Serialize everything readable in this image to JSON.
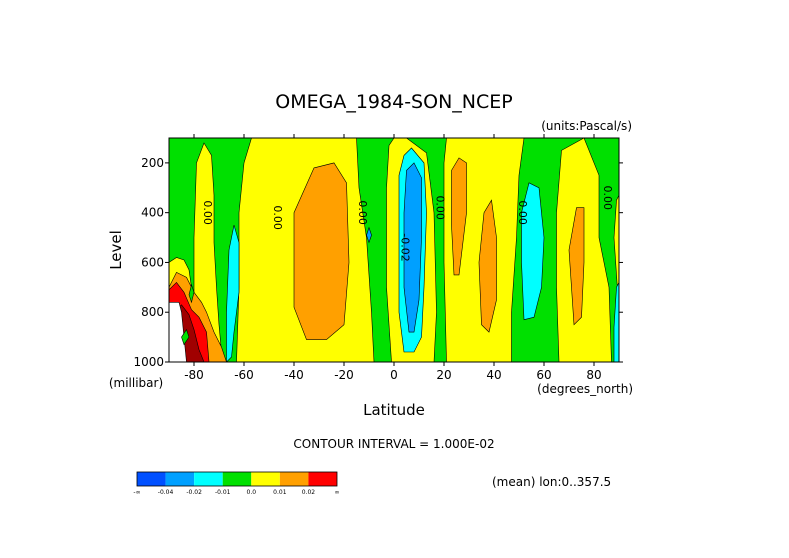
{
  "chart_data": {
    "type": "contour",
    "title": "OMEGA_1984-SON_NCEP",
    "units_label": "(units:Pascal/s)",
    "xlabel": "Latitude",
    "x_units_label": "(degrees_north)",
    "ylabel": "Level",
    "y_units_label": "(millibar)",
    "xlim": [
      -90,
      90
    ],
    "ylim": [
      1000,
      100
    ],
    "x_ticks": [
      {
        "value": -80,
        "label": "-80"
      },
      {
        "value": -60,
        "label": "-60"
      },
      {
        "value": -40,
        "label": "-40"
      },
      {
        "value": -20,
        "label": "-20"
      },
      {
        "value": 0,
        "label": "0"
      },
      {
        "value": 20,
        "label": "20"
      },
      {
        "value": 40,
        "label": "40"
      },
      {
        "value": 60,
        "label": "60"
      },
      {
        "value": 80,
        "label": "80"
      }
    ],
    "y_ticks": [
      {
        "value": 200,
        "label": "200"
      },
      {
        "value": 400,
        "label": "400"
      },
      {
        "value": 600,
        "label": "600"
      },
      {
        "value": 800,
        "label": "800"
      },
      {
        "value": 1000,
        "label": "1000"
      }
    ],
    "contour_interval_text": "CONTOUR INTERVAL = 1.000E-02",
    "mean_note": "(mean) lon:0..357.5",
    "colorbar": {
      "colors": [
        "#0050ff",
        "#00a0ff",
        "#00ffff",
        "#00e000",
        "#ffff00",
        "#ffa000",
        "#ff0000"
      ],
      "labels": [
        "-∞",
        "-0.04",
        "-0.02",
        "-0.01",
        "0.0",
        "0.01",
        "0.02",
        "∞"
      ]
    },
    "background_color": "#00e000",
    "regions": [
      {
        "level": "yellow",
        "color": "#ffff00",
        "pts": [
          [
            -90,
            1000
          ],
          [
            -90,
            600
          ],
          [
            -87,
            580
          ],
          [
            -84,
            590
          ],
          [
            -82,
            630
          ],
          [
            -81,
            700
          ],
          [
            -80,
            760
          ],
          [
            -80,
            500
          ],
          [
            -79,
            200
          ],
          [
            -76,
            120
          ],
          [
            -73,
            170
          ],
          [
            -72,
            330
          ],
          [
            -72,
            520
          ],
          [
            -71,
            700
          ],
          [
            -70,
            850
          ],
          [
            -69,
            960
          ],
          [
            -67,
            1000
          ]
        ]
      },
      {
        "level": "yellow",
        "color": "#ffff00",
        "pts": [
          [
            -63,
            1000
          ],
          [
            -62,
            700
          ],
          [
            -62,
            400
          ],
          [
            -60,
            200
          ],
          [
            -57,
            100
          ],
          [
            -15,
            100
          ],
          [
            -14,
            300
          ],
          [
            -11,
            500
          ],
          [
            -9,
            800
          ],
          [
            -8,
            1000
          ]
        ]
      },
      {
        "level": "yellow",
        "color": "#ffff00",
        "pts": [
          [
            -1,
            1000
          ],
          [
            -3,
            700
          ],
          [
            -3,
            300
          ],
          [
            -2,
            130
          ],
          [
            0,
            100
          ],
          [
            5,
            100
          ],
          [
            13,
            160
          ],
          [
            16,
            400
          ],
          [
            17,
            800
          ],
          [
            16,
            1000
          ]
        ]
      },
      {
        "level": "yellow",
        "color": "#ffff00",
        "pts": [
          [
            21,
            1000
          ],
          [
            20,
            600
          ],
          [
            20,
            200
          ],
          [
            21,
            100
          ],
          [
            52,
            100
          ],
          [
            50,
            250
          ],
          [
            49,
            500
          ],
          [
            47,
            800
          ],
          [
            47,
            1000
          ]
        ]
      },
      {
        "level": "yellow",
        "color": "#ffff00",
        "pts": [
          [
            66,
            1000
          ],
          [
            65,
            700
          ],
          [
            65,
            400
          ],
          [
            67,
            150
          ],
          [
            76,
            100
          ],
          [
            82,
            250
          ],
          [
            82,
            500
          ],
          [
            86,
            700
          ],
          [
            87,
            1000
          ]
        ]
      },
      {
        "level": "yellow",
        "color": "#ffff00",
        "pts": [
          [
            90,
            800
          ],
          [
            88,
            500
          ],
          [
            89,
            350
          ],
          [
            90,
            330
          ]
        ]
      },
      {
        "level": "orange",
        "color": "#ffa000",
        "pts": [
          [
            -40,
            780
          ],
          [
            -40,
            400
          ],
          [
            -32,
            220
          ],
          [
            -24,
            200
          ],
          [
            -19,
            280
          ],
          [
            -18,
            600
          ],
          [
            -20,
            850
          ],
          [
            -27,
            910
          ],
          [
            -35,
            910
          ]
        ]
      },
      {
        "level": "orange",
        "color": "#ffa000",
        "pts": [
          [
            24,
            650
          ],
          [
            23,
            450
          ],
          [
            23,
            230
          ],
          [
            26,
            180
          ],
          [
            29,
            200
          ],
          [
            29,
            400
          ],
          [
            26,
            650
          ]
        ]
      },
      {
        "level": "orange",
        "color": "#ffa000",
        "pts": [
          [
            35,
            850
          ],
          [
            34,
            600
          ],
          [
            36,
            400
          ],
          [
            39,
            350
          ],
          [
            41,
            500
          ],
          [
            41,
            750
          ],
          [
            38,
            880
          ]
        ]
      },
      {
        "level": "orange",
        "color": "#ffa000",
        "pts": [
          [
            72,
            850
          ],
          [
            70,
            550
          ],
          [
            73,
            380
          ],
          [
            76,
            380
          ],
          [
            76,
            600
          ],
          [
            75,
            820
          ]
        ]
      },
      {
        "level": "orange",
        "color": "#ffa000",
        "pts": [
          [
            -90,
            1000
          ],
          [
            -90,
            700
          ],
          [
            -87,
            640
          ],
          [
            -83,
            660
          ],
          [
            -80,
            720
          ],
          [
            -77,
            760
          ],
          [
            -75,
            800
          ],
          [
            -72,
            880
          ],
          [
            -69,
            940
          ],
          [
            -67,
            1000
          ]
        ]
      },
      {
        "level": "red",
        "color": "#ff0000",
        "pts": [
          [
            -90,
            1000
          ],
          [
            -90,
            710
          ],
          [
            -87,
            680
          ],
          [
            -84,
            720
          ],
          [
            -81,
            790
          ],
          [
            -78,
            820
          ],
          [
            -75,
            880
          ],
          [
            -74,
            1000
          ]
        ]
      },
      {
        "level": "darkred",
        "color": "#a00000",
        "pts": [
          [
            -88,
            1000
          ],
          [
            -88,
            800
          ],
          [
            -85,
            770
          ],
          [
            -82,
            810
          ],
          [
            -80,
            870
          ],
          [
            -78,
            950
          ],
          [
            -76,
            1000
          ]
        ]
      },
      {
        "level": "white",
        "color": "#ffffff",
        "pts": [
          [
            -90,
            1000
          ],
          [
            -90,
            760
          ],
          [
            -86,
            760
          ],
          [
            -85,
            800
          ],
          [
            -84,
            900
          ],
          [
            -83,
            1000
          ]
        ]
      },
      {
        "level": "cyan",
        "color": "#00ffff",
        "pts": [
          [
            -67,
            1000
          ],
          [
            -67,
            800
          ],
          [
            -66,
            550
          ],
          [
            -64,
            450
          ],
          [
            -62,
            520
          ],
          [
            -62,
            720
          ],
          [
            -64,
            880
          ],
          [
            -65,
            980
          ]
        ]
      },
      {
        "level": "cyan",
        "color": "#00ffff",
        "pts": [
          [
            4,
            960
          ],
          [
            2,
            800
          ],
          [
            2,
            500
          ],
          [
            2,
            250
          ],
          [
            4,
            170
          ],
          [
            7,
            140
          ],
          [
            12,
            200
          ],
          [
            13,
            400
          ],
          [
            12,
            700
          ],
          [
            11,
            900
          ],
          [
            8,
            960
          ]
        ]
      },
      {
        "level": "cyan",
        "color": "#00ffff",
        "pts": [
          [
            52,
            830
          ],
          [
            51,
            600
          ],
          [
            51,
            400
          ],
          [
            54,
            280
          ],
          [
            58,
            300
          ],
          [
            60,
            500
          ],
          [
            59,
            700
          ],
          [
            56,
            820
          ]
        ]
      },
      {
        "level": "cyan",
        "color": "#00ffff",
        "pts": [
          [
            88,
            1000
          ],
          [
            88,
            860
          ],
          [
            89,
            700
          ],
          [
            90,
            680
          ],
          [
            90,
            1000
          ]
        ]
      },
      {
        "level": "blue",
        "color": "#00a0ff",
        "pts": [
          [
            6,
            880
          ],
          [
            4,
            700
          ],
          [
            4,
            400
          ],
          [
            5,
            230
          ],
          [
            8,
            200
          ],
          [
            11,
            260
          ],
          [
            11,
            500
          ],
          [
            10,
            750
          ],
          [
            8,
            880
          ]
        ]
      },
      {
        "level": "blue",
        "color": "#00a0ff",
        "pts": [
          [
            -10,
            520
          ],
          [
            -11,
            490
          ],
          [
            -10,
            460
          ],
          [
            -9,
            490
          ]
        ]
      },
      {
        "level": "green",
        "color": "#00e000",
        "pts": [
          [
            -82,
            730
          ],
          [
            -81,
            690
          ],
          [
            -80,
            720
          ],
          [
            -81,
            760
          ]
        ]
      },
      {
        "level": "green",
        "color": "#00e000",
        "pts": [
          [
            -85,
            900
          ],
          [
            -83,
            870
          ],
          [
            -82,
            900
          ],
          [
            -84,
            930
          ]
        ]
      }
    ],
    "contour_labels": [
      {
        "x": -76,
        "y": 400,
        "text": "0.00"
      },
      {
        "x": -48,
        "y": 420,
        "text": "0.00"
      },
      {
        "x": -14,
        "y": 400,
        "text": "0.00"
      },
      {
        "x": 3,
        "y": 540,
        "text": "-0.02"
      },
      {
        "x": 17,
        "y": 380,
        "text": "0.00"
      },
      {
        "x": 50,
        "y": 400,
        "text": "0.00"
      },
      {
        "x": 84,
        "y": 340,
        "text": "0.00"
      }
    ]
  }
}
